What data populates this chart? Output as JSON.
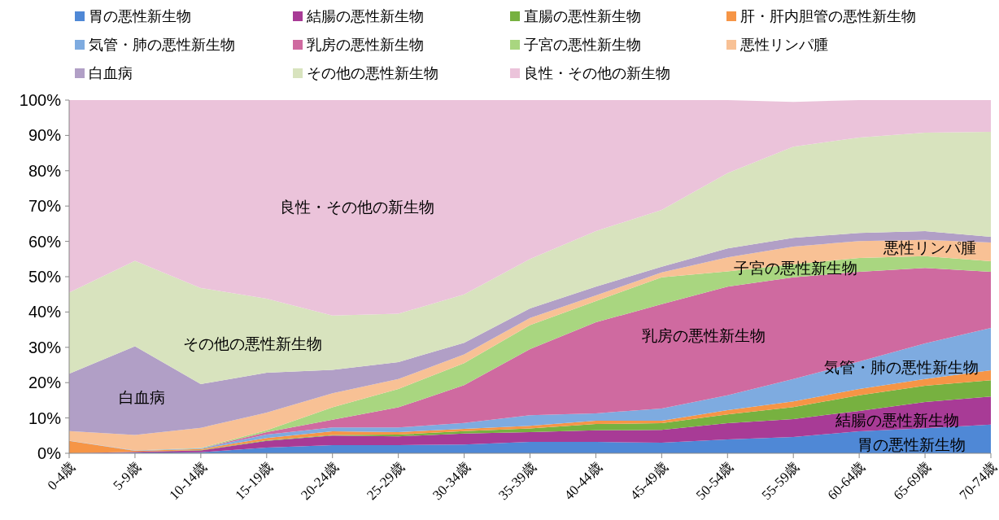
{
  "chart_data": {
    "type": "area",
    "stacked": true,
    "categories": [
      "0-4歳",
      "5-9歳",
      "10-14歳",
      "15-19歳",
      "20-24歳",
      "25-29歳",
      "30-34歳",
      "35-39歳",
      "40-44歳",
      "45-49歳",
      "50-54歳",
      "55-59歳",
      "60-64歳",
      "65-69歳",
      "70-74歳"
    ],
    "ylim": [
      0,
      100
    ],
    "yticks": [
      {
        "value": 0,
        "label": "0%"
      },
      {
        "value": 10,
        "label": "10%"
      },
      {
        "value": 20,
        "label": "20%"
      },
      {
        "value": 30,
        "label": "30%"
      },
      {
        "value": 40,
        "label": "40%"
      },
      {
        "value": 50,
        "label": "50%"
      },
      {
        "value": 60,
        "label": "60%"
      },
      {
        "value": 70,
        "label": "70%"
      },
      {
        "value": 80,
        "label": "80%"
      },
      {
        "value": 90,
        "label": "90%"
      },
      {
        "value": 100,
        "label": "100%"
      }
    ],
    "legend": "top",
    "grid": false,
    "series": [
      {
        "name": "胃の悪性新生物",
        "color": "#4f88d6",
        "values": [
          0,
          0.2,
          0.3,
          1.6,
          2.3,
          2.3,
          2.5,
          3.2,
          3.2,
          3.0,
          3.9,
          4.6,
          6.2,
          7.1,
          8.1
        ]
      },
      {
        "name": "結腸の悪性新生物",
        "color": "#a83b96",
        "values": [
          0,
          0.2,
          0.5,
          1.9,
          2.7,
          2.5,
          3.1,
          2.8,
          3.3,
          3.6,
          4.6,
          5.1,
          5.8,
          7.4,
          8.0
        ]
      },
      {
        "name": "直腸の悪性新生物",
        "color": "#77b140",
        "values": [
          0,
          0,
          0.1,
          0.2,
          0.2,
          0.5,
          0.7,
          1.0,
          1.8,
          1.9,
          2.5,
          3.4,
          4.4,
          4.6,
          4.6
        ]
      },
      {
        "name": "肝・肝内胆管の悪性新生物",
        "color": "#f69546",
        "values": [
          3.5,
          0.3,
          0.3,
          0.6,
          1.0,
          0.7,
          0.6,
          0.8,
          0.9,
          0.7,
          1.2,
          1.6,
          1.8,
          1.9,
          2.8
        ]
      },
      {
        "name": "気管・肺の悪性新生物",
        "color": "#7eabe0",
        "values": [
          0.1,
          0.1,
          0.2,
          1.0,
          1.1,
          1.3,
          1.7,
          3.0,
          2.1,
          3.5,
          4.2,
          6.3,
          7.8,
          10.1,
          12.0
        ]
      },
      {
        "name": "乳房の悪性新生物",
        "color": "#cf6aa0",
        "values": [
          0,
          0,
          0,
          0.7,
          2.2,
          5.7,
          10.7,
          18.7,
          25.8,
          29.5,
          30.8,
          28.8,
          25.4,
          21.4,
          15.9
        ]
      },
      {
        "name": "子宮の悪性新生物",
        "color": "#a9d680",
        "values": [
          0,
          0,
          0.1,
          0.5,
          3.5,
          5.2,
          6.2,
          6.8,
          6.0,
          7.6,
          4.3,
          3.7,
          3.9,
          3.3,
          3.0
        ]
      },
      {
        "name": "悪性リンパ腫",
        "color": "#f8c195",
        "values": [
          2.7,
          4.4,
          5.7,
          5.0,
          4.0,
          2.8,
          2.5,
          2.0,
          1.6,
          1.4,
          4.0,
          5.0,
          4.8,
          4.6,
          5.3
        ]
      },
      {
        "name": "白血病",
        "color": "#b19fc6",
        "values": [
          16.2,
          25.1,
          12.4,
          11.3,
          6.6,
          4.8,
          3.3,
          2.7,
          2.5,
          1.6,
          2.5,
          2.5,
          2.3,
          2.5,
          1.6
        ]
      },
      {
        "name": "その他の悪性新生物",
        "color": "#d8e3be",
        "values": [
          23,
          24.2,
          27.2,
          21.0,
          15.4,
          13.7,
          13.7,
          14.0,
          15.7,
          16.1,
          21.3,
          25.8,
          27.0,
          27.9,
          29.7
        ]
      },
      {
        "name": "良性・その他の新生物",
        "color": "#ebc3da",
        "values": [
          54.5,
          45.5,
          53.2,
          56.2,
          61.0,
          60.5,
          55.0,
          45.0,
          37.1,
          31.1,
          20.7,
          12.7,
          10.6,
          9.2,
          9.0
        ]
      }
    ],
    "annotations": [
      "良性・その他の新生物",
      "その他の悪性新生物",
      "白血病",
      "乳房の悪性新生物",
      "子宮の悪性新生物",
      "悪性リンパ腫",
      "気管・肺の悪性新生物",
      "結腸の悪性新生物",
      "胃の悪性新生物"
    ]
  }
}
